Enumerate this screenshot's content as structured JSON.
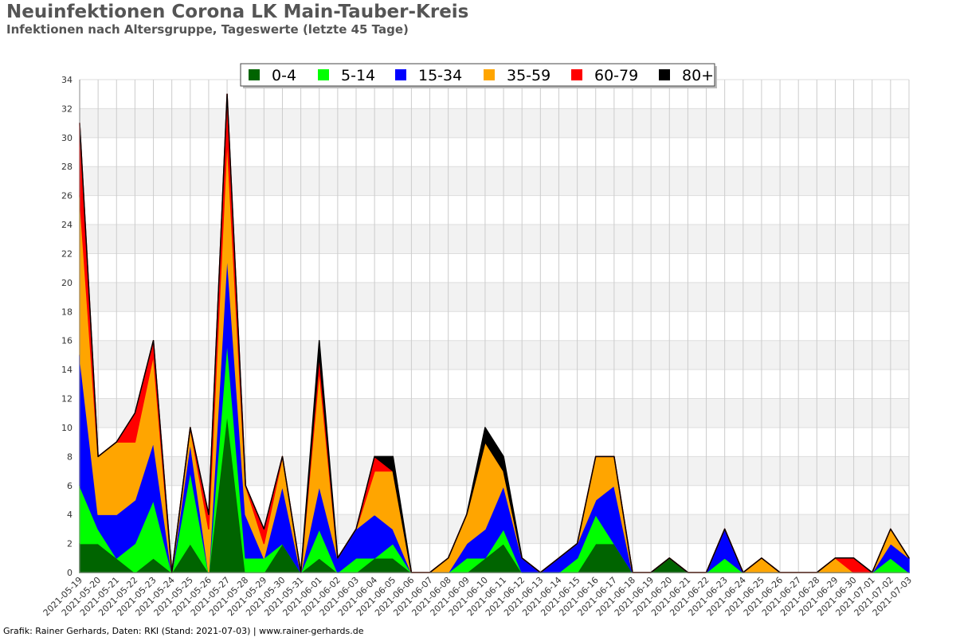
{
  "header": {
    "title": "Neuinfektionen Corona LK Main-Tauber-Kreis",
    "subtitle": "Infektionen nach Altersgruppe, Tageswerte (letzte 45 Tage)"
  },
  "footer": {
    "credit": "Grafik: Rainer Gerhards, Daten: RKI (Stand: 2021-07-03) | www.rainer-gerhards.de"
  },
  "chart_data": {
    "type": "area",
    "stacked": true,
    "title": "Neuinfektionen Corona LK Main-Tauber-Kreis",
    "subtitle": "Infektionen nach Altersgruppe, Tageswerte (letzte 45 Tage)",
    "xlabel": "",
    "ylabel": "",
    "ylim": [
      0,
      34
    ],
    "yticks": [
      0,
      2,
      4,
      6,
      8,
      10,
      12,
      14,
      16,
      18,
      20,
      22,
      24,
      26,
      28,
      30,
      32,
      34
    ],
    "grid": true,
    "legend_position": "top",
    "categories": [
      "2021-05-19",
      "2021-05-20",
      "2021-05-21",
      "2021-05-22",
      "2021-05-23",
      "2021-05-24",
      "2021-05-25",
      "2021-05-26",
      "2021-05-27",
      "2021-05-28",
      "2021-05-29",
      "2021-05-30",
      "2021-05-31",
      "2021-06-01",
      "2021-06-02",
      "2021-06-03",
      "2021-06-04",
      "2021-06-05",
      "2021-06-06",
      "2021-06-07",
      "2021-06-08",
      "2021-06-09",
      "2021-06-10",
      "2021-06-11",
      "2021-06-12",
      "2021-06-13",
      "2021-06-14",
      "2021-06-15",
      "2021-06-16",
      "2021-06-17",
      "2021-06-18",
      "2021-06-19",
      "2021-06-20",
      "2021-06-21",
      "2021-06-22",
      "2021-06-23",
      "2021-06-24",
      "2021-06-25",
      "2021-06-26",
      "2021-06-27",
      "2021-06-28",
      "2021-06-29",
      "2021-06-30",
      "2021-07-01",
      "2021-07-02",
      "2021-07-03"
    ],
    "series": [
      {
        "name": "0-4",
        "color": "#006400",
        "values": [
          2,
          2,
          1,
          0,
          1,
          0,
          2,
          0,
          11,
          0,
          0,
          2,
          0,
          1,
          0,
          0,
          1,
          1,
          0,
          0,
          0,
          0,
          1,
          2,
          0,
          0,
          0,
          0,
          2,
          2,
          0,
          0,
          1,
          0,
          0,
          0,
          0,
          0,
          0,
          0,
          0,
          0,
          0,
          0,
          0,
          0
        ]
      },
      {
        "name": "5-14",
        "color": "#00ff00",
        "values": [
          4,
          1,
          0,
          2,
          4,
          0,
          5,
          0,
          5,
          1,
          1,
          0,
          0,
          2,
          0,
          1,
          0,
          1,
          0,
          0,
          0,
          1,
          0,
          1,
          0,
          0,
          0,
          1,
          2,
          0,
          0,
          0,
          0,
          0,
          0,
          1,
          0,
          0,
          0,
          0,
          0,
          0,
          0,
          0,
          1,
          0
        ]
      },
      {
        "name": "15-34",
        "color": "#0000ff",
        "values": [
          9,
          1,
          3,
          3,
          4,
          0,
          2,
          0,
          6,
          3,
          0,
          4,
          0,
          3,
          1,
          2,
          3,
          1,
          0,
          0,
          0,
          1,
          2,
          3,
          1,
          0,
          1,
          1,
          1,
          4,
          0,
          0,
          0,
          0,
          0,
          2,
          0,
          0,
          0,
          0,
          0,
          0,
          0,
          0,
          1,
          1
        ]
      },
      {
        "name": "35-59",
        "color": "#ffa500",
        "values": [
          11,
          4,
          5,
          4,
          6,
          0,
          1,
          3,
          8,
          2,
          1,
          2,
          0,
          8,
          0,
          0,
          3,
          4,
          0,
          0,
          1,
          2,
          6,
          1,
          0,
          0,
          0,
          0,
          3,
          2,
          0,
          0,
          0,
          0,
          0,
          0,
          0,
          1,
          0,
          0,
          0,
          1,
          0,
          0,
          1,
          0
        ]
      },
      {
        "name": "60-79",
        "color": "#ff0000",
        "values": [
          5,
          0,
          0,
          2,
          1,
          0,
          0,
          1,
          3,
          0,
          1,
          0,
          0,
          1,
          0,
          0,
          1,
          0,
          0,
          0,
          0,
          0,
          0,
          0,
          0,
          0,
          0,
          0,
          0,
          0,
          0,
          0,
          0,
          0,
          0,
          0,
          0,
          0,
          0,
          0,
          0,
          0,
          1,
          0,
          0,
          0
        ]
      },
      {
        "name": "80+",
        "color": "#000000",
        "values": [
          0,
          0,
          0,
          0,
          0,
          0,
          0,
          0,
          0,
          0,
          0,
          0,
          0,
          1,
          0,
          0,
          0,
          1,
          0,
          0,
          0,
          0,
          1,
          1,
          0,
          0,
          0,
          0,
          0,
          0,
          0,
          0,
          0,
          0,
          0,
          0,
          0,
          0,
          0,
          0,
          0,
          0,
          0,
          0,
          0,
          0
        ]
      }
    ]
  }
}
